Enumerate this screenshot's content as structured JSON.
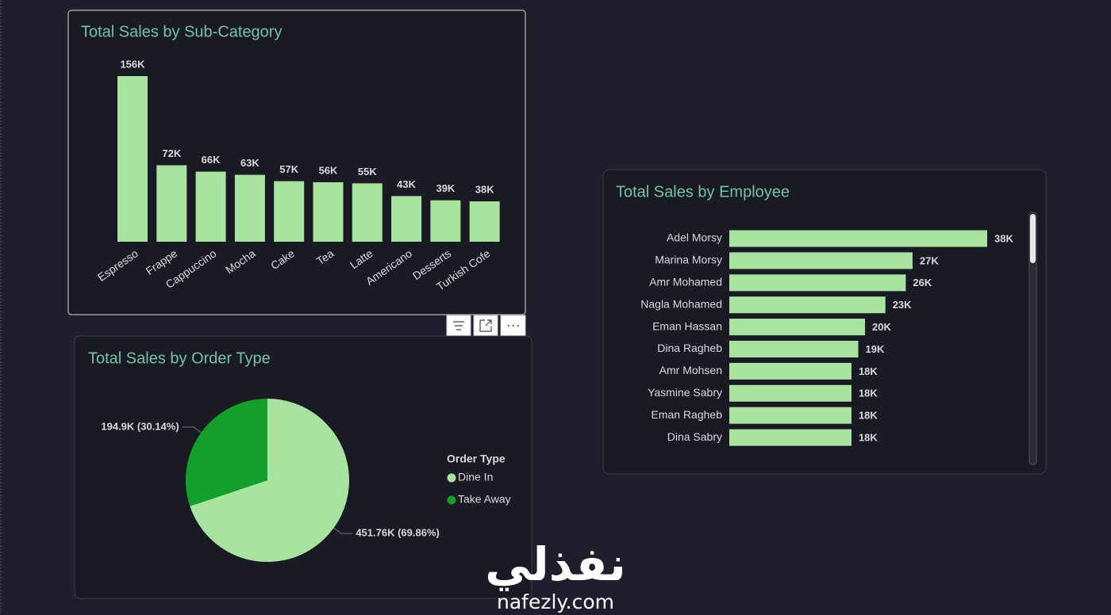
{
  "chart_data": [
    {
      "type": "bar",
      "title": "Total Sales by Sub-Category",
      "categories": [
        "Espresso",
        "Frappe",
        "Cappuccino",
        "Mocha",
        "Cake",
        "Tea",
        "Latte",
        "Americano",
        "Desserts",
        "Turkish Cofe"
      ],
      "values": [
        156,
        72,
        66,
        63,
        57,
        56,
        55,
        43,
        39,
        38
      ],
      "value_labels": [
        "156K",
        "72K",
        "66K",
        "63K",
        "57K",
        "56K",
        "55K",
        "43K",
        "39K",
        "38K"
      ],
      "color": "#a8e4a0"
    },
    {
      "type": "pie",
      "title": "Total Sales by Order Type",
      "categories": [
        "Dine In",
        "Take Away"
      ],
      "values": [
        451.76,
        194.9
      ],
      "value_labels": [
        "451.76K (69.86%)",
        "194.9K (30.14%)"
      ],
      "colors": [
        "#a8e4a0",
        "#12a02a"
      ],
      "legend_title": "Order Type"
    },
    {
      "type": "hbar",
      "title": "Total Sales by Employee",
      "categories": [
        "Adel Morsy",
        "Marina Morsy",
        "Amr Mohamed",
        "Nagla Mohamed",
        "Eman Hassan",
        "Dina Ragheb",
        "Amr Mohsen",
        "Yasmine Sabry",
        "Eman Ragheb",
        "Dina Sabry"
      ],
      "values": [
        38,
        27,
        26,
        23,
        20,
        19,
        18,
        18,
        18,
        18
      ],
      "value_labels": [
        "38K",
        "27K",
        "26K",
        "23K",
        "20K",
        "19K",
        "18K",
        "18K",
        "18K",
        "18K"
      ],
      "color": "#a8e4a0"
    }
  ],
  "watermark": {
    "brand": "نفذلي",
    "url": "nafezly.com"
  }
}
